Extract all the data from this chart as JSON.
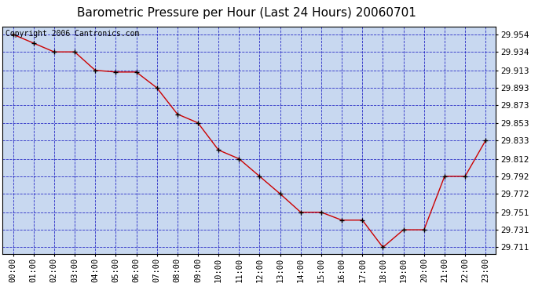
{
  "title": "Barometric Pressure per Hour (Last 24 Hours) 20060701",
  "copyright_text": "Copyright 2006 Cantronics.com",
  "hours": [
    0,
    1,
    2,
    3,
    4,
    5,
    6,
    7,
    8,
    9,
    10,
    11,
    12,
    13,
    14,
    15,
    16,
    17,
    18,
    19,
    20,
    21,
    22,
    23
  ],
  "pressure": [
    29.954,
    29.944,
    29.934,
    29.934,
    29.913,
    29.911,
    29.911,
    29.893,
    29.863,
    29.853,
    29.822,
    29.812,
    29.792,
    29.772,
    29.751,
    29.751,
    29.742,
    29.742,
    29.711,
    29.731,
    29.731,
    29.792,
    29.792,
    29.833
  ],
  "y_ticks": [
    29.711,
    29.731,
    29.751,
    29.772,
    29.792,
    29.812,
    29.833,
    29.853,
    29.873,
    29.893,
    29.913,
    29.934,
    29.954
  ],
  "ylim": [
    29.703,
    29.963
  ],
  "line_color": "#cc0000",
  "marker_color": "#000000",
  "bg_color": "#ffffff",
  "plot_bg_color": "#c8d8f0",
  "grid_color": "#0000bb",
  "title_fontsize": 11,
  "copyright_fontsize": 7,
  "tick_label_fontsize": 7.5
}
